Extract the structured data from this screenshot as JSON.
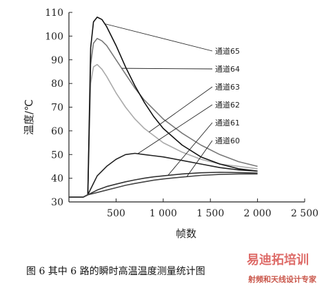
{
  "chart_data": {
    "type": "line",
    "title": "",
    "xlabel": "帧数",
    "ylabel": "温度/℃",
    "xlim": [
      0,
      2500
    ],
    "ylim": [
      30,
      110
    ],
    "x_ticks": [
      "500",
      "1 000",
      "1 500",
      "2 000",
      "2 500"
    ],
    "y_ticks": [
      "30",
      "40",
      "50",
      "60",
      "70",
      "80",
      "90",
      "100",
      "110"
    ],
    "series": [
      {
        "name": "通道65",
        "color": "#111111",
        "x": [
          0,
          150,
          200,
          230,
          260,
          300,
          350,
          400,
          500,
          600,
          700,
          800,
          900,
          1000,
          1200,
          1400,
          1600,
          1800,
          2000
        ],
        "y": [
          32,
          32,
          33,
          95,
          106,
          108,
          107,
          104,
          96,
          87,
          79,
          72,
          66,
          61,
          54,
          49,
          46,
          44,
          43
        ]
      },
      {
        "name": "通道64",
        "color": "#777777",
        "x": [
          0,
          150,
          200,
          230,
          260,
          300,
          350,
          400,
          500,
          600,
          700,
          800,
          900,
          1000,
          1200,
          1400,
          1600,
          1800,
          2000
        ],
        "y": [
          32,
          32,
          33,
          88,
          97,
          99,
          98,
          96,
          90,
          84,
          78,
          73,
          69,
          65,
          59,
          54,
          50,
          47,
          45
        ]
      },
      {
        "name": "通道63",
        "color": "#aaaaaa",
        "x": [
          0,
          150,
          200,
          230,
          260,
          300,
          350,
          400,
          500,
          600,
          700,
          800,
          900,
          1000,
          1200,
          1400,
          1600,
          1800,
          2000
        ],
        "y": [
          32,
          32,
          33,
          80,
          87,
          88,
          86,
          83,
          76,
          70,
          65,
          61,
          58,
          55,
          51,
          48,
          46,
          45,
          44
        ]
      },
      {
        "name": "通道62",
        "color": "#222222",
        "x": [
          0,
          150,
          200,
          250,
          300,
          400,
          500,
          600,
          700,
          800,
          900,
          1000,
          1200,
          1400,
          1600,
          1800,
          2000
        ],
        "y": [
          32,
          32,
          33,
          37,
          41,
          45,
          48,
          50,
          50.5,
          50,
          49.5,
          49,
          47.5,
          46,
          44.5,
          43.5,
          43
        ]
      },
      {
        "name": "通道61",
        "color": "#333333",
        "x": [
          0,
          150,
          200,
          300,
          400,
          500,
          600,
          700,
          800,
          900,
          1000,
          1200,
          1400,
          1600,
          1800,
          2000
        ],
        "y": [
          32,
          32,
          33,
          35,
          36.5,
          37.5,
          38.5,
          39.3,
          40,
          40.6,
          41,
          41.8,
          42.3,
          42.5,
          42.4,
          42.2
        ]
      },
      {
        "name": "通道60",
        "color": "#444444",
        "x": [
          0,
          150,
          200,
          300,
          400,
          500,
          600,
          700,
          800,
          900,
          1000,
          1200,
          1400,
          1600,
          1800,
          2000
        ],
        "y": [
          32,
          32,
          33,
          34,
          35,
          36,
          37,
          37.8,
          38.5,
          39.2,
          39.7,
          40.5,
          41.2,
          41.6,
          41.8,
          41.8
        ]
      }
    ]
  },
  "caption": "图 6   其中 6 路的瞬时高温温度测量统计图",
  "watermark": {
    "main": "易迪拓培训",
    "sub": "射频和天线设计专家"
  }
}
